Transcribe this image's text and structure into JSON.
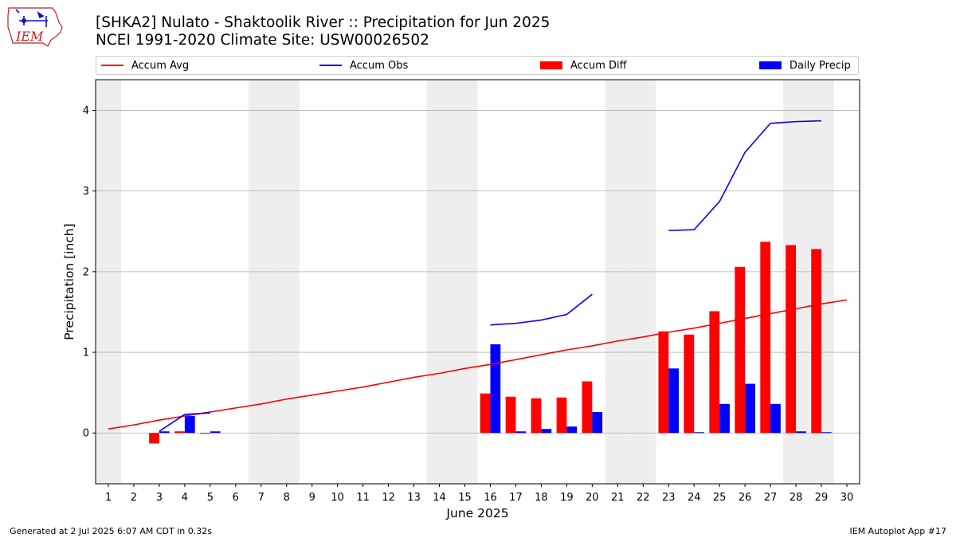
{
  "logo": {
    "text": "IEM"
  },
  "title_line1": "[SHKA2] Nulato - Shaktoolik River :: Precipitation for Jun 2025",
  "title_line2": "NCEI 1991-2020 Climate Site: USW00026502",
  "footer": {
    "left": "Generated at 2 Jul 2025 6:07 AM CDT in 0.32s",
    "right": "IEM Autoplot App #17"
  },
  "colors": {
    "accum_avg": "#ff0000",
    "accum_obs": "#0000ff",
    "accum_diff": "#ff0000",
    "daily_precip": "#0000ff",
    "weekend_shade": "#eeeeee",
    "grid": "#b0b0b0"
  },
  "chart_data": {
    "type": "bar",
    "xlabel": "June 2025",
    "ylabel": "Precipitation [inch]",
    "xlim": [
      0.5,
      30.5
    ],
    "ylim": [
      -0.63,
      4.38
    ],
    "yticks": [
      0,
      1,
      2,
      3,
      4
    ],
    "xticks": [
      1,
      2,
      3,
      4,
      5,
      6,
      7,
      8,
      9,
      10,
      11,
      12,
      13,
      14,
      15,
      16,
      17,
      18,
      19,
      20,
      21,
      22,
      23,
      24,
      25,
      26,
      27,
      28,
      29,
      30
    ],
    "grid": "y",
    "legend": {
      "placement": "top",
      "entries": [
        {
          "key": "accum_avg",
          "label": "Accum Avg",
          "kind": "line"
        },
        {
          "key": "accum_obs",
          "label": "Accum Obs",
          "kind": "line"
        },
        {
          "key": "accum_diff",
          "label": "Accum Diff",
          "kind": "bar"
        },
        {
          "key": "daily_precip",
          "label": "Daily Precip",
          "kind": "bar"
        }
      ]
    },
    "weekend_days": [
      1,
      7,
      8,
      14,
      15,
      21,
      22,
      28,
      29
    ],
    "accum_avg": {
      "x": [
        1,
        2,
        3,
        4,
        5,
        6,
        7,
        8,
        9,
        10,
        11,
        12,
        13,
        14,
        15,
        16,
        17,
        18,
        19,
        20,
        21,
        22,
        23,
        24,
        25,
        26,
        27,
        28,
        29,
        30
      ],
      "y": [
        0.05,
        0.1,
        0.16,
        0.21,
        0.26,
        0.31,
        0.36,
        0.42,
        0.47,
        0.52,
        0.57,
        0.63,
        0.69,
        0.74,
        0.8,
        0.85,
        0.91,
        0.97,
        1.03,
        1.08,
        1.14,
        1.19,
        1.25,
        1.3,
        1.36,
        1.42,
        1.48,
        1.54,
        1.6,
        1.65
      ]
    },
    "accum_obs": {
      "segments": [
        {
          "x": [
            3,
            4,
            5
          ],
          "y": [
            0.02,
            0.23,
            0.25
          ]
        },
        {
          "x": [
            16,
            17,
            18,
            19,
            20
          ],
          "y": [
            1.34,
            1.36,
            1.4,
            1.47,
            1.72
          ]
        },
        {
          "x": [
            23,
            24,
            25,
            26,
            27,
            28,
            29
          ],
          "y": [
            2.51,
            2.52,
            2.87,
            3.48,
            3.84,
            3.86,
            3.87
          ]
        }
      ]
    },
    "accum_diff": {
      "x": [
        3,
        4,
        5,
        16,
        17,
        18,
        19,
        20,
        23,
        24,
        25,
        26,
        27,
        28,
        29
      ],
      "y": [
        -0.13,
        0.02,
        -0.01,
        0.49,
        0.45,
        0.43,
        0.44,
        0.64,
        1.26,
        1.22,
        1.51,
        2.06,
        2.37,
        2.33,
        2.28
      ]
    },
    "daily_precip": {
      "x": [
        3,
        4,
        5,
        16,
        17,
        18,
        19,
        20,
        23,
        24,
        25,
        26,
        27,
        28,
        29
      ],
      "y": [
        0.02,
        0.21,
        0.02,
        1.1,
        0.02,
        0.05,
        0.08,
        0.26,
        0.8,
        0.01,
        0.36,
        0.61,
        0.36,
        0.02,
        0.01
      ]
    }
  }
}
